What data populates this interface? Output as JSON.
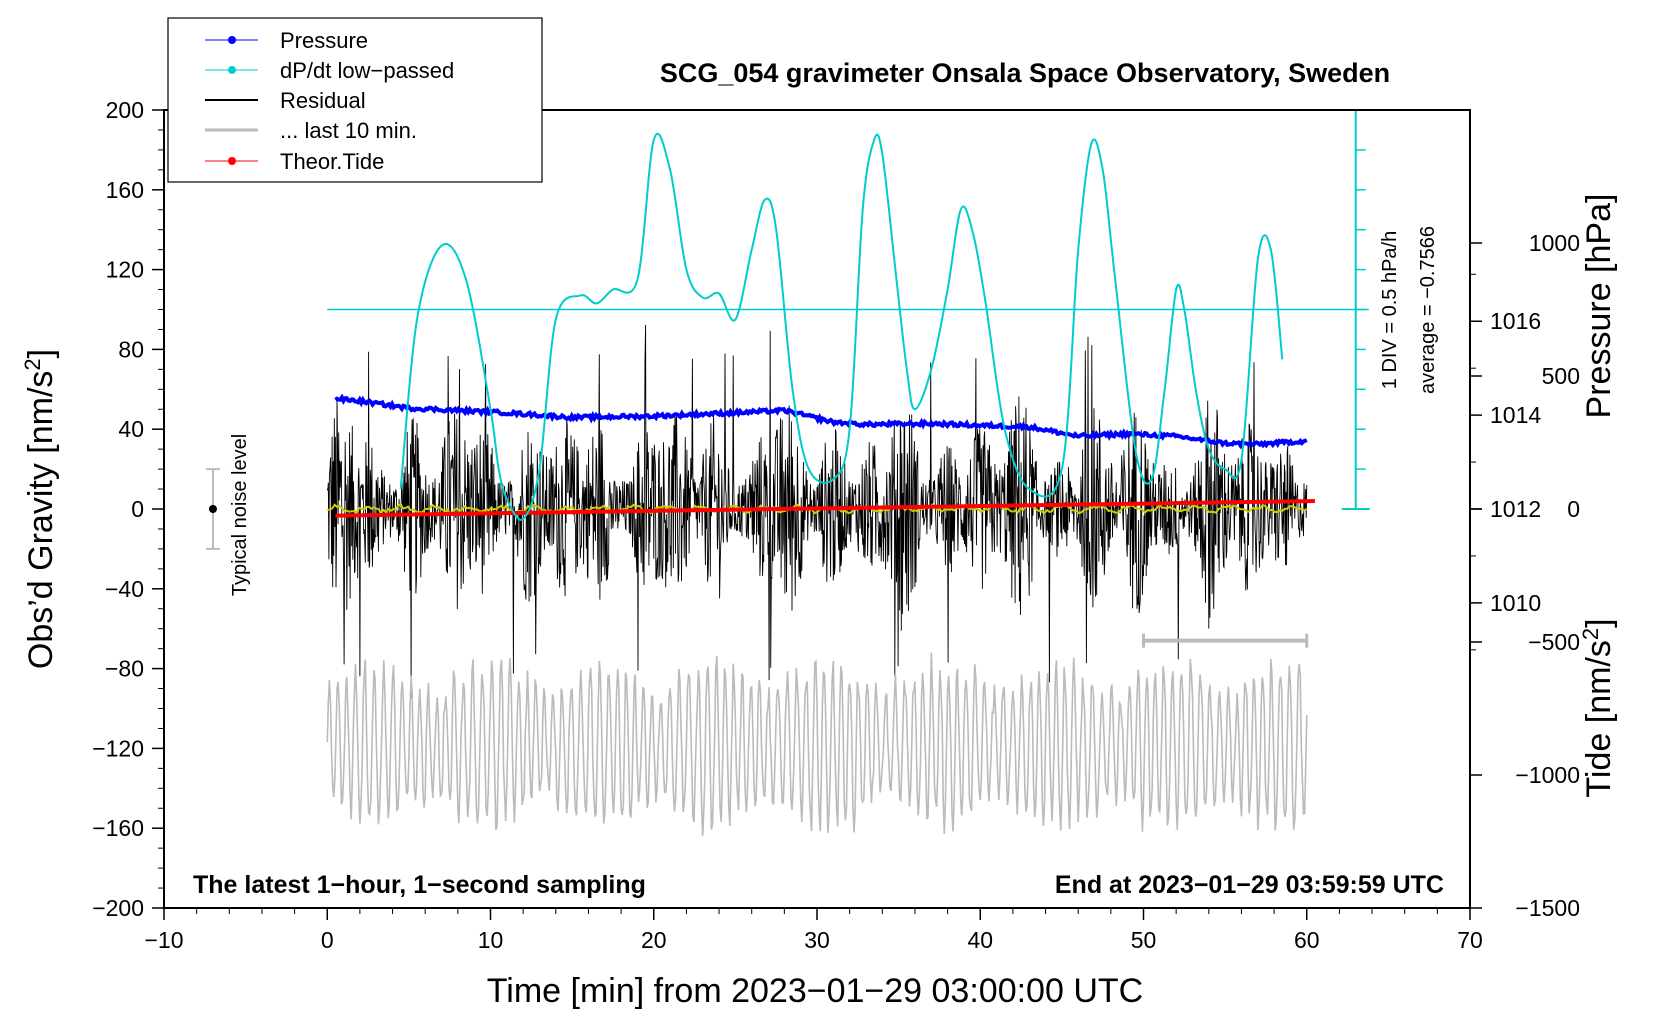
{
  "chart_data": {
    "type": "line",
    "title": "SCG_054 gravimeter Onsala Space Observatory, Sweden",
    "xlabel": "Time [min] from 2023−01−29 03:00:00 UTC",
    "ylabel_left_text": "Obs’d Gravity [nm/s",
    "ylabel_left_sup": "2",
    "ylabel_left_close": "]",
    "ylabel_right_top": "Pressure [hPa]",
    "ylabel_right_bottom_text": "Tide [nm/s",
    "ylabel_right_bottom_sup": "2",
    "ylabel_right_bottom_close": "]",
    "xlim": [
      -10,
      70
    ],
    "ylim": [
      -200,
      200
    ],
    "pressure_lim": [
      1003.5,
      1020.5
    ],
    "tide_lim": [
      -1500,
      1500
    ],
    "x_ticks": [
      "−10",
      "0",
      "10",
      "20",
      "30",
      "40",
      "50",
      "60",
      "70"
    ],
    "y_ticks": [
      "200",
      "160",
      "120",
      "80",
      "40",
      "0",
      "−40",
      "−80",
      "−120",
      "−160",
      "−200"
    ],
    "pressure_ticks": [
      "1016",
      "1014",
      "1012",
      "1010"
    ],
    "tide_ticks": [
      "1000",
      "500",
      "0",
      "−500",
      "−1000",
      "−1500"
    ],
    "legend": {
      "placement": "top-left",
      "entries": [
        {
          "label": "Pressure",
          "color": "#0000ff",
          "marker": true
        },
        {
          "label": "dP/dt low−passed",
          "color": "#00cccc",
          "marker": true
        },
        {
          "label": "Residual",
          "color": "#000000",
          "marker": false
        },
        {
          "label": "... last 10 min.",
          "color": "#bbbbbb",
          "marker": false
        },
        {
          "label": "Theor.Tide",
          "color": "#ff0000",
          "marker": true
        }
      ]
    },
    "annotations": {
      "bottom_left": "The latest 1−hour, 1−second sampling",
      "bottom_right": "End at 2023−01−29 03:59:59 UTC",
      "noise_label": "Typical noise level",
      "dpdt_scale": "1 DIV = 0.5 hPa/h",
      "dpdt_average": "average = −0.7566"
    },
    "series": [
      {
        "name": "Pressure",
        "axis": "pressure",
        "color": "#0000ff",
        "x": [
          0.5,
          2,
          5,
          8,
          11,
          15,
          20,
          25,
          28,
          31,
          33,
          37,
          40,
          43,
          46,
          49,
          52,
          55,
          57,
          60
        ],
        "y": [
          1014.35,
          1014.3,
          1014.15,
          1014.1,
          1014.05,
          1013.95,
          1013.98,
          1014.05,
          1014.1,
          1013.85,
          1013.8,
          1013.82,
          1013.78,
          1013.75,
          1013.55,
          1013.6,
          1013.55,
          1013.4,
          1013.38,
          1013.45
        ]
      },
      {
        "name": "dP/dt low-passed",
        "axis": "gravity",
        "color": "#00cccc",
        "x": [
          4.5,
          5.5,
          7,
          8.5,
          10,
          10.5,
          11,
          12,
          13,
          14,
          15.5,
          16.5,
          17.5,
          19,
          20,
          21,
          22,
          23,
          24,
          25,
          26,
          26.8,
          27.5,
          28.5,
          29.5,
          31,
          32,
          32.8,
          33.5,
          34,
          34.8,
          35.5,
          36,
          37,
          38,
          38.8,
          39.5,
          40.3,
          41.5,
          43,
          45,
          46,
          46.8,
          47.5,
          48.2,
          49.5,
          50.5,
          51.3,
          52,
          52.5,
          53.2,
          54,
          55,
          56,
          57,
          57.8,
          58.5
        ],
        "y": [
          10,
          95,
          132,
          115,
          50,
          20,
          5,
          -5,
          20,
          95,
          107,
          103,
          110,
          115,
          185,
          170,
          120,
          106,
          108,
          95,
          130,
          155,
          140,
          60,
          20,
          15,
          40,
          150,
          185,
          178,
          120,
          70,
          50,
          70,
          110,
          150,
          140,
          105,
          40,
          10,
          20,
          130,
          183,
          170,
          120,
          30,
          15,
          60,
          110,
          100,
          60,
          30,
          20,
          25,
          125,
          130,
          75
        ]
      },
      {
        "name": "Residual",
        "axis": "gravity",
        "color": "#000000",
        "x_range": [
          0,
          60
        ],
        "typical_range": [
          -60,
          60
        ],
        "extremes": [
          -95,
          93
        ]
      },
      {
        "name": "Residual low-passed",
        "axis": "gravity",
        "color": "#cccc00",
        "x_range": [
          0,
          60
        ],
        "y_mean": 0
      },
      {
        "name": "... last 10 min.",
        "axis": "gravity",
        "color": "#bbbbbb",
        "x_range": [
          0,
          60
        ],
        "center": -118,
        "amplitude_range": [
          -182,
          -58
        ]
      },
      {
        "name": "Theor.Tide",
        "axis": "tide",
        "color": "#ff0000",
        "x": [
          0.5,
          60.5
        ],
        "y": [
          -25,
          30
        ]
      }
    ],
    "noise_bar": {
      "x": -7,
      "y": 0,
      "low": -20,
      "high": 20
    },
    "last10_bracket": {
      "x_start": 50,
      "x_end": 60,
      "y": -66
    },
    "dpdt_baseline": 100,
    "dpdt_scale_axis": {
      "x": 63,
      "y_from": 0,
      "y_to": 200,
      "div": 20
    }
  }
}
